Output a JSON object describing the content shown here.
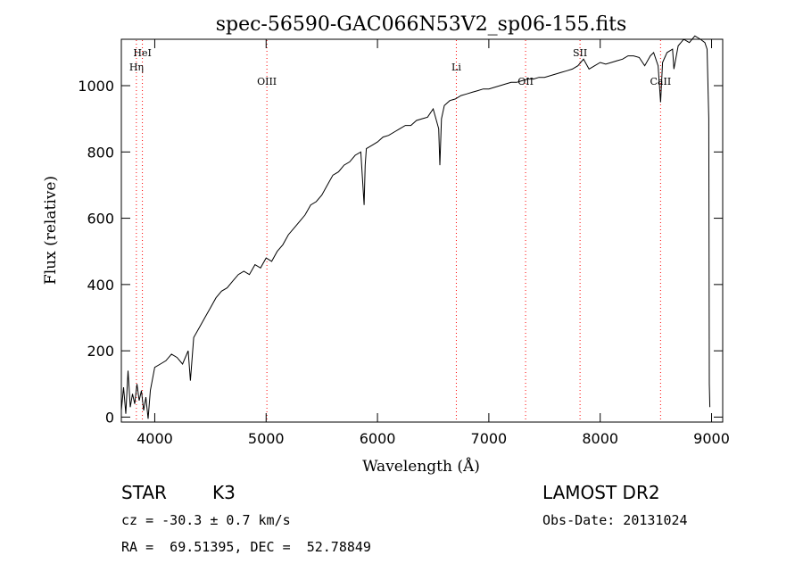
{
  "chart_data": {
    "type": "line",
    "title": "spec-56590-GAC066N53V2_sp06-155.fits",
    "xlabel": "Wavelength (Å)",
    "ylabel": "Flux (relative)",
    "xlim": [
      3700,
      9100
    ],
    "ylim": [
      -15,
      1140
    ],
    "xticks": [
      4000,
      5000,
      6000,
      7000,
      8000,
      9000
    ],
    "yticks": [
      0,
      200,
      400,
      600,
      800,
      1000
    ],
    "grid": false,
    "line_color": "#000000",
    "marker_color": "#ff0000",
    "series": [
      {
        "x": [
          3700,
          3720,
          3740,
          3760,
          3780,
          3800,
          3820,
          3840,
          3860,
          3880,
          3900,
          3920,
          3940,
          3960,
          4000,
          4050,
          4100,
          4150,
          4200,
          4250,
          4300,
          4320,
          4350,
          4400,
          4450,
          4500,
          4550,
          4600,
          4650,
          4700,
          4750,
          4800,
          4850,
          4900,
          4950,
          5000,
          5050,
          5100,
          5150,
          5200,
          5250,
          5300,
          5350,
          5400,
          5450,
          5500,
          5550,
          5600,
          5650,
          5700,
          5750,
          5800,
          5850,
          5880,
          5890,
          5900,
          5950,
          6000,
          6050,
          6100,
          6150,
          6200,
          6250,
          6300,
          6350,
          6400,
          6450,
          6500,
          6550,
          6560,
          6575,
          6600,
          6650,
          6700,
          6750,
          6800,
          6850,
          6900,
          6950,
          7000,
          7050,
          7100,
          7150,
          7200,
          7250,
          7300,
          7350,
          7400,
          7450,
          7500,
          7550,
          7600,
          7650,
          7700,
          7750,
          7800,
          7850,
          7900,
          7950,
          8000,
          8050,
          8100,
          8150,
          8200,
          8250,
          8300,
          8350,
          8400,
          8450,
          8480,
          8500,
          8520,
          8542,
          8560,
          8600,
          8650,
          8662,
          8700,
          8750,
          8800,
          8850,
          8900,
          8940,
          8960,
          8975,
          8980,
          8985
        ],
        "y": [
          20,
          90,
          10,
          140,
          30,
          70,
          40,
          100,
          50,
          80,
          20,
          60,
          -5,
          80,
          150,
          160,
          170,
          190,
          180,
          160,
          200,
          110,
          240,
          270,
          300,
          330,
          360,
          380,
          390,
          410,
          430,
          440,
          430,
          460,
          450,
          480,
          470,
          500,
          520,
          550,
          570,
          590,
          610,
          640,
          650,
          670,
          700,
          730,
          740,
          760,
          770,
          790,
          800,
          640,
          760,
          810,
          820,
          830,
          845,
          850,
          860,
          870,
          880,
          880,
          895,
          900,
          905,
          930,
          870,
          760,
          900,
          940,
          955,
          960,
          970,
          975,
          980,
          985,
          990,
          990,
          995,
          1000,
          1005,
          1010,
          1010,
          1015,
          1020,
          1020,
          1025,
          1025,
          1030,
          1035,
          1040,
          1045,
          1050,
          1060,
          1080,
          1050,
          1060,
          1070,
          1065,
          1070,
          1075,
          1080,
          1090,
          1090,
          1085,
          1060,
          1090,
          1100,
          1080,
          1060,
          950,
          1070,
          1100,
          1110,
          1050,
          1120,
          1140,
          1130,
          1150,
          1140,
          1130,
          1110,
          900,
          100,
          30
        ]
      }
    ],
    "line_markers": [
      {
        "label": "HeI",
        "x": 3889
      },
      {
        "label": "Hη",
        "x": 3835
      },
      {
        "label": "OIII",
        "x": 5007
      },
      {
        "label": "Li",
        "x": 6708
      },
      {
        "label": "OII",
        "x": 7330
      },
      {
        "label": "SII",
        "x": 7819
      },
      {
        "label": "CaII",
        "x": 8542
      }
    ]
  },
  "info": {
    "object_class": "STAR",
    "subclass": "K3",
    "survey": "LAMOST DR2",
    "cz": "cz = -30.3 ± 0.7 km/s",
    "obs_date": "Obs-Date: 20131024",
    "coords": "RA =  69.51395, DEC =  52.78849"
  }
}
